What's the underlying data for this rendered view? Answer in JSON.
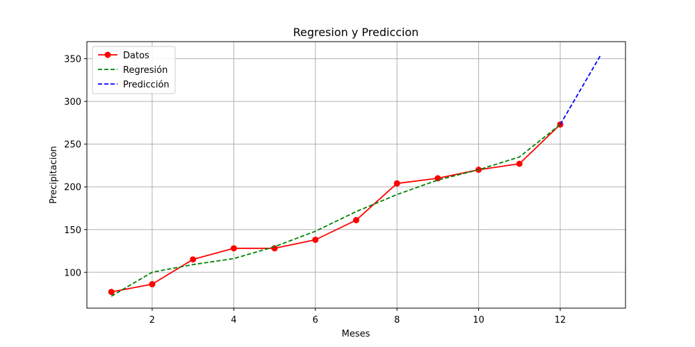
{
  "chart_data": {
    "type": "line",
    "title": "Regresion y Prediccion",
    "xlabel": "Meses",
    "ylabel": "Precipitacion",
    "xlim": [
      0.4,
      13.6
    ],
    "ylim": [
      58,
      370
    ],
    "xticks": [
      2,
      4,
      6,
      8,
      10,
      12
    ],
    "yticks": [
      100,
      150,
      200,
      250,
      300,
      350
    ],
    "grid": true,
    "legend_position": "top-left",
    "series": [
      {
        "name": "Datos",
        "color": "#ff0000",
        "style": "solid",
        "marker": "circle",
        "x": [
          1,
          2,
          3,
          4,
          5,
          6,
          7,
          8,
          9,
          10,
          11,
          12
        ],
        "y": [
          77,
          86,
          115,
          128,
          128,
          138,
          161,
          204,
          210,
          220,
          227,
          273
        ]
      },
      {
        "name": "Regresión",
        "color": "#008000",
        "style": "dashed",
        "marker": "none",
        "x": [
          1,
          2,
          3,
          4,
          5,
          6,
          7,
          8,
          9,
          10,
          11,
          12
        ],
        "y": [
          72,
          100,
          109,
          116,
          130,
          148,
          171,
          191,
          208,
          220,
          235,
          273
        ]
      },
      {
        "name": "Predicción",
        "color": "#0000ff",
        "style": "dashed",
        "marker": "none",
        "x": [
          12,
          13
        ],
        "y": [
          273,
          355
        ]
      }
    ]
  }
}
